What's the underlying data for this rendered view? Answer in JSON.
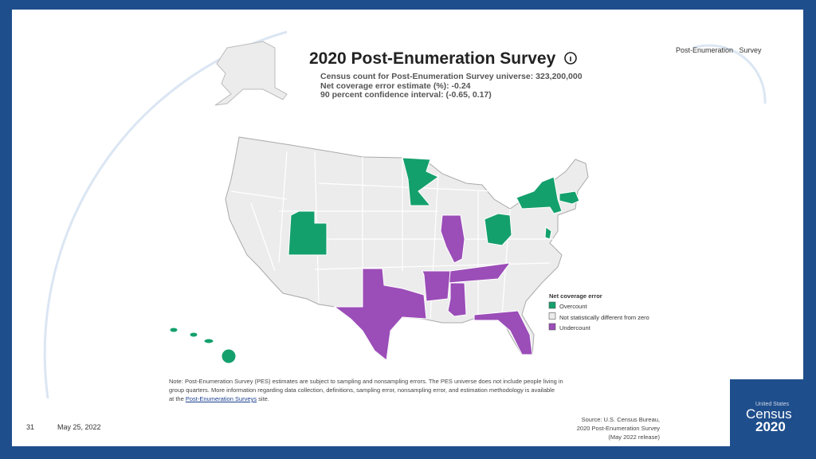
{
  "header": {
    "label": "Post-Enumeration   Survey"
  },
  "map": {
    "title": "2020 Post-Enumeration Survey",
    "subtitle_lines": [
      "Census count for Post-Enumeration Survey universe: 323,200,000",
      "Net coverage error estimate (%): -0.24",
      "90 percent confidence interval: (-0.65, 0.17)"
    ],
    "legend": {
      "title": "Net coverage error",
      "items": [
        {
          "label": "Overcount",
          "color": "#14a06c"
        },
        {
          "label": "Not statistically different from zero",
          "color": "#ececec"
        },
        {
          "label": "Undercount",
          "color": "#9b4db8"
        }
      ]
    }
  },
  "note": {
    "lines": [
      "Note: Post-Enumeration Survey (PES) estimates are subject to sampling and nonsampling errors. The PES universe does not include people living in",
      "group quarters. More information regarding data collection, definitions, sampling error, nonsampling error, and estimation methodology is available"
    ],
    "last_line": {
      "before": "at the ",
      "link": "Post-Enumeration Surveys",
      "after": " site."
    }
  },
  "source": {
    "lines": [
      "Source: U.S. Census Bureau,",
      "2020 Post-Enumeration Survey",
      "(May 2022 release)"
    ]
  },
  "footer": {
    "page": "31",
    "date": "May 25, 2022"
  },
  "logo": {
    "top": "United States",
    "middle": "Census",
    "bottom": "2020"
  }
}
